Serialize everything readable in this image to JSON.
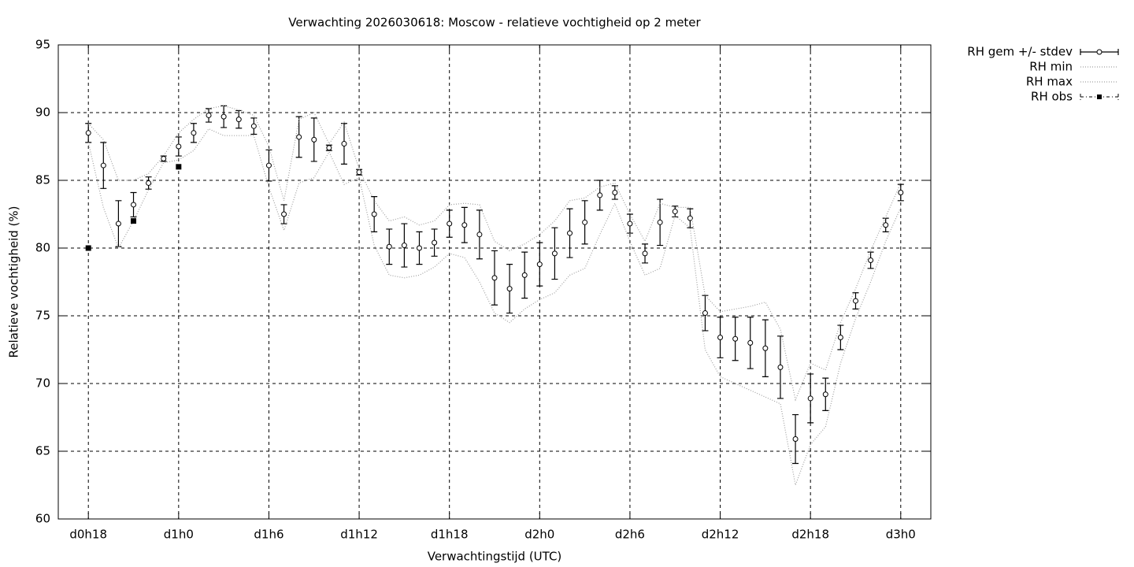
{
  "chart_data": {
    "type": "line",
    "title": "Verwachting 2026030618: Moscow - relatieve vochtigheid op 2 meter",
    "x_label": "Verwachtingstijd (UTC)",
    "y_label": "Relatieve vochtigheid (%)",
    "x": [
      0,
      1,
      2,
      3,
      4,
      5,
      6,
      7,
      8,
      9,
      10,
      11,
      12,
      13,
      14,
      15,
      16,
      17,
      18,
      19,
      20,
      21,
      22,
      23,
      24,
      25,
      26,
      27,
      28,
      29,
      30,
      31,
      32,
      33,
      34,
      35,
      36,
      37,
      38,
      39,
      40,
      41,
      42,
      43,
      44,
      45,
      46,
      47,
      48,
      49,
      50,
      51,
      52,
      53,
      54
    ],
    "xlim": [
      -2,
      56
    ],
    "xticks": [
      {
        "value": 0,
        "label": "d0h18"
      },
      {
        "value": 6,
        "label": "d1h0"
      },
      {
        "value": 12,
        "label": "d1h6"
      },
      {
        "value": 18,
        "label": "d1h12"
      },
      {
        "value": 24,
        "label": "d1h18"
      },
      {
        "value": 30,
        "label": "d2h0"
      },
      {
        "value": 36,
        "label": "d2h6"
      },
      {
        "value": 42,
        "label": "d2h12"
      },
      {
        "value": 48,
        "label": "d2h18"
      },
      {
        "value": 54,
        "label": "d3h0"
      }
    ],
    "ylim": [
      60,
      95
    ],
    "yticks": [
      60,
      65,
      70,
      75,
      80,
      85,
      90,
      95
    ],
    "grid": true,
    "legend": "outside-right-top",
    "series": [
      {
        "name": "RH gem +/- stdev",
        "color": "#000000",
        "style": "errorbars",
        "values": [
          88.5,
          86.1,
          81.8,
          83.2,
          84.8,
          86.6,
          87.5,
          88.5,
          89.8,
          89.7,
          89.5,
          89.0,
          86.1,
          82.5,
          88.2,
          88.0,
          87.4,
          87.7,
          85.6,
          82.5,
          80.1,
          80.2,
          80.0,
          80.4,
          81.8,
          81.7,
          81.0,
          77.8,
          77.0,
          78.0,
          78.8,
          79.6,
          81.1,
          81.9,
          83.9,
          84.1,
          81.8,
          79.6,
          81.9,
          82.7,
          82.2,
          75.2,
          73.4,
          73.3,
          73.0,
          72.6,
          71.2,
          65.9,
          68.9,
          69.2,
          73.4,
          76.1,
          79.1,
          81.7,
          84.1
        ],
        "errors": [
          0.7,
          1.7,
          1.7,
          0.9,
          0.45,
          0.2,
          0.7,
          0.7,
          0.5,
          0.8,
          0.65,
          0.6,
          1.15,
          0.7,
          1.5,
          1.6,
          0.2,
          1.5,
          0.2,
          1.3,
          1.3,
          1.6,
          1.2,
          1.0,
          1.0,
          1.3,
          1.8,
          2.0,
          1.8,
          1.7,
          1.6,
          1.9,
          1.8,
          1.6,
          1.1,
          0.5,
          0.7,
          0.7,
          1.7,
          0.4,
          0.7,
          1.3,
          1.5,
          1.6,
          1.9,
          2.1,
          2.3,
          1.8,
          1.8,
          1.2,
          0.9,
          0.6,
          0.6,
          0.5,
          0.6
        ]
      },
      {
        "name": "RH min",
        "color": "#a0a0a0",
        "style": "dotted",
        "values": [
          87.8,
          83.0,
          80.0,
          82.0,
          84.3,
          86.3,
          86.5,
          87.2,
          88.8,
          88.3,
          88.3,
          88.3,
          84.5,
          81.3,
          84.8,
          85.2,
          87.1,
          84.7,
          85.2,
          80.2,
          78.0,
          77.8,
          78.0,
          78.6,
          79.6,
          79.3,
          77.5,
          75.2,
          74.5,
          75.5,
          76.2,
          76.7,
          78.0,
          78.5,
          81.0,
          83.3,
          80.5,
          78.0,
          78.5,
          82.4,
          81.5,
          72.5,
          70.5,
          70.0,
          69.5,
          69.0,
          68.5,
          62.5,
          65.5,
          66.8,
          71.5,
          74.8,
          77.5,
          80.5,
          83.0
        ]
      },
      {
        "name": "RH max",
        "color": "#a0a0a0",
        "style": "dotted",
        "values": [
          89.2,
          88.0,
          85.0,
          85.0,
          85.5,
          86.8,
          88.5,
          89.5,
          90.3,
          90.5,
          90.2,
          89.8,
          87.5,
          83.5,
          89.5,
          90.0,
          87.7,
          89.3,
          85.8,
          83.5,
          82.0,
          82.3,
          81.7,
          82.0,
          83.2,
          83.3,
          83.2,
          80.5,
          79.8,
          80.3,
          81.0,
          82.0,
          83.5,
          83.7,
          84.5,
          84.8,
          82.5,
          80.5,
          83.3,
          83.0,
          83.0,
          76.5,
          75.3,
          75.5,
          75.7,
          76.0,
          74.0,
          68.8,
          71.5,
          71.0,
          74.5,
          77.0,
          79.8,
          82.3,
          84.8
        ]
      },
      {
        "name": "RH obs",
        "color": "#000000",
        "style": "points",
        "values": [
          80,
          null,
          null,
          82,
          null,
          null,
          86,
          null,
          null,
          null,
          null,
          null,
          null,
          null,
          null,
          null,
          null,
          null,
          null,
          null,
          null,
          null,
          null,
          null,
          null,
          null,
          null,
          null,
          null,
          null,
          null,
          null,
          null,
          null,
          null,
          null,
          null,
          null,
          null,
          null,
          null,
          null,
          null,
          null,
          null,
          null,
          null,
          null,
          null,
          null,
          null,
          null,
          null,
          null,
          null
        ]
      }
    ]
  }
}
